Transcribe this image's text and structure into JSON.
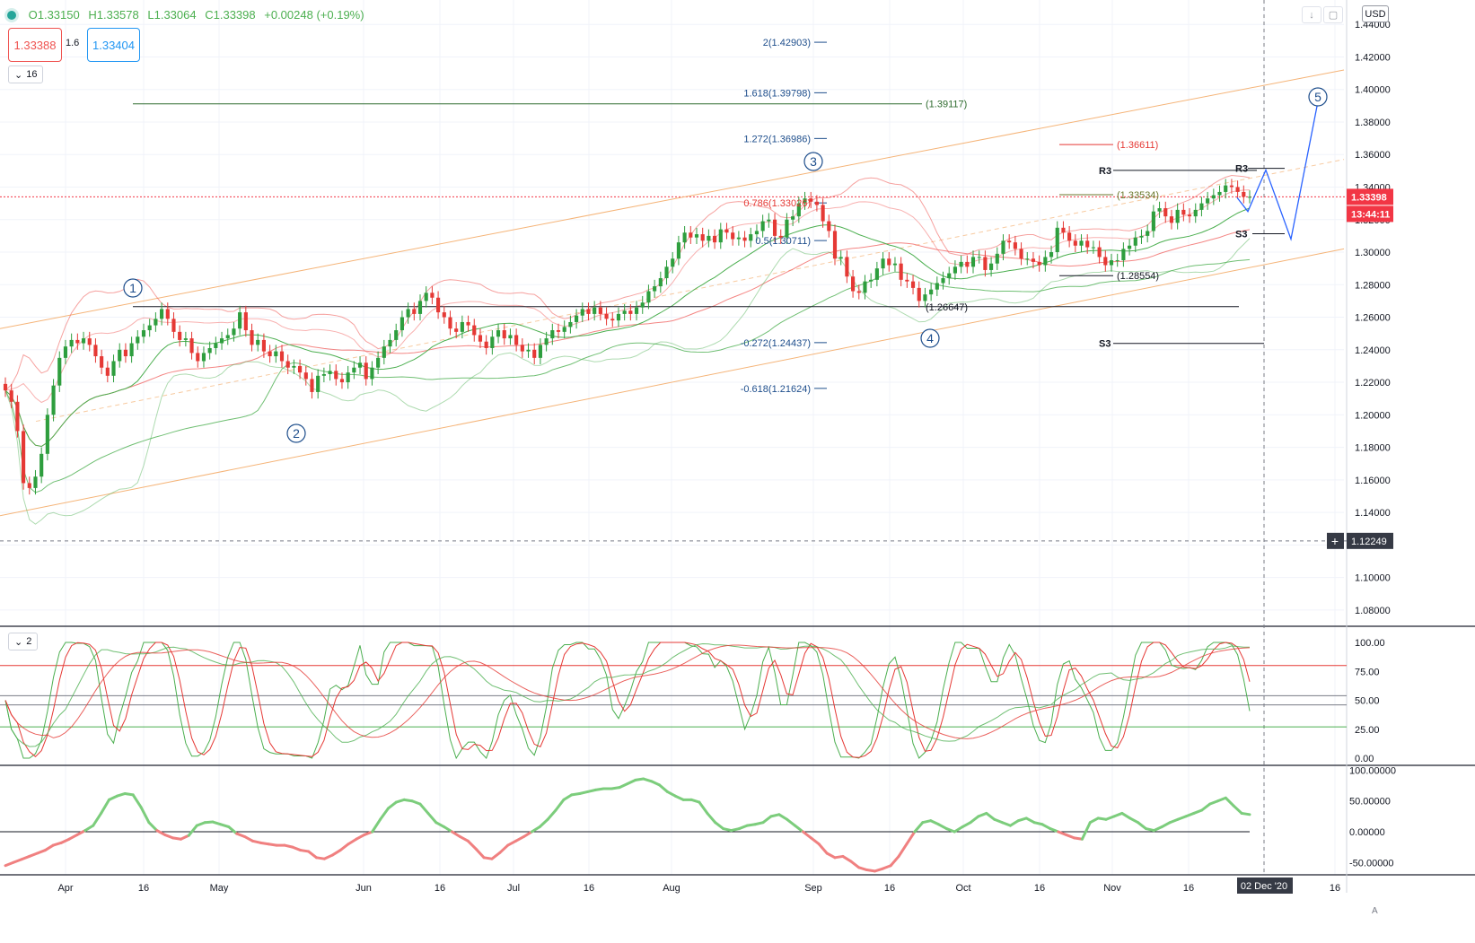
{
  "header": {
    "open": "O1.33150",
    "high": "H1.33578",
    "low": "L1.33064",
    "close": "C1.33398",
    "change": "+0.00248 (+0.19%)",
    "sell_price": "1.33388",
    "buy_price": "1.33404",
    "spread": "1.6",
    "indicators_collapse": "16",
    "stoch_collapse": "2",
    "currency": "USD"
  },
  "colors": {
    "up": "#2e9e3e",
    "down": "#e53935",
    "fib": "#1e4e8c",
    "channel": "#f5b478",
    "bb_red": "#ef5350",
    "bb_green": "#4caf50",
    "accent_red": "#f23645"
  },
  "chart_data": [
    {
      "type": "candlestick",
      "title": "",
      "x_ticks": [
        "Apr",
        "16",
        "May",
        "Jun",
        "16",
        "Jul",
        "16",
        "Aug",
        "Sep",
        "16",
        "Oct",
        "16",
        "Nov",
        "16",
        "02 Dec '20",
        "16"
      ],
      "y_ticks": [
        "1.08000",
        "1.10000",
        "1.12000",
        "1.14000",
        "1.16000",
        "1.18000",
        "1.20000",
        "1.22000",
        "1.24000",
        "1.26000",
        "1.28000",
        "1.30000",
        "1.32000",
        "1.34000",
        "1.36000",
        "1.38000",
        "1.40000",
        "1.42000",
        "1.44000"
      ],
      "ylim": [
        1.07,
        1.455
      ],
      "current_price": "1.33398",
      "countdown": "13:44:11",
      "crosshair_price": "1.12249",
      "close_series": [
        1.215,
        1.208,
        1.19,
        1.158,
        1.155,
        1.162,
        1.176,
        1.2,
        1.218,
        1.235,
        1.242,
        1.246,
        1.244,
        1.247,
        1.243,
        1.236,
        1.229,
        1.224,
        1.233,
        1.24,
        1.236,
        1.244,
        1.248,
        1.252,
        1.255,
        1.259,
        1.265,
        1.259,
        1.251,
        1.246,
        1.247,
        1.238,
        1.233,
        1.238,
        1.241,
        1.244,
        1.247,
        1.249,
        1.253,
        1.263,
        1.252,
        1.243,
        1.246,
        1.239,
        1.236,
        1.239,
        1.233,
        1.229,
        1.23,
        1.226,
        1.222,
        1.214,
        1.224,
        1.225,
        1.227,
        1.222,
        1.22,
        1.226,
        1.229,
        1.232,
        1.222,
        1.229,
        1.235,
        1.242,
        1.246,
        1.252,
        1.26,
        1.265,
        1.262,
        1.27,
        1.275,
        1.272,
        1.263,
        1.26,
        1.253,
        1.251,
        1.257,
        1.255,
        1.249,
        1.245,
        1.241,
        1.248,
        1.252,
        1.247,
        1.249,
        1.243,
        1.239,
        1.24,
        1.235,
        1.243,
        1.247,
        1.252,
        1.251,
        1.254,
        1.257,
        1.261,
        1.265,
        1.262,
        1.266,
        1.262,
        1.259,
        1.258,
        1.262,
        1.264,
        1.262,
        1.266,
        1.269,
        1.276,
        1.279,
        1.284,
        1.291,
        1.296,
        1.306,
        1.312,
        1.309,
        1.311,
        1.307,
        1.31,
        1.306,
        1.314,
        1.312,
        1.308,
        1.309,
        1.307,
        1.311,
        1.313,
        1.319,
        1.32,
        1.31,
        1.309,
        1.32,
        1.322,
        1.33,
        1.333,
        1.331,
        1.329,
        1.319,
        1.313,
        1.296,
        1.297,
        1.285,
        1.276,
        1.275,
        1.282,
        1.283,
        1.29,
        1.296,
        1.292,
        1.293,
        1.283,
        1.282,
        1.278,
        1.27,
        1.274,
        1.277,
        1.281,
        1.284,
        1.287,
        1.291,
        1.294,
        1.291,
        1.297,
        1.297,
        1.289,
        1.293,
        1.299,
        1.307,
        1.306,
        1.302,
        1.296,
        1.296,
        1.294,
        1.292,
        1.297,
        1.3,
        1.315,
        1.312,
        1.307,
        1.304,
        1.307,
        1.303,
        1.303,
        1.297,
        1.292,
        1.295,
        1.295,
        1.302,
        1.304,
        1.309,
        1.31,
        1.313,
        1.325,
        1.327,
        1.322,
        1.318,
        1.326,
        1.323,
        1.322,
        1.326,
        1.33,
        1.333,
        1.335,
        1.337,
        1.341,
        1.34,
        1.337,
        1.334,
        1.334
      ],
      "fib_levels": [
        {
          "label": "2(1.42903)",
          "value": 1.42903
        },
        {
          "label": "1.618(1.39798)",
          "value": 1.39798
        },
        {
          "label": "1.272(1.36986)",
          "value": 1.36986
        },
        {
          "label": "0.786(1.33026)",
          "value": 1.33026
        },
        {
          "label": "0.5(1.30711)",
          "value": 1.30711
        },
        {
          "label": "-0.272(1.24437)",
          "value": 1.24437
        },
        {
          "label": "-0.618(1.21624)",
          "value": 1.21624
        }
      ],
      "annotations": [
        {
          "label": "(1.39117)",
          "value": 1.39117
        },
        {
          "label": "(1.36611)",
          "value": 1.36611
        },
        {
          "label": "(1.33534)",
          "value": 1.33534
        },
        {
          "label": "(1.28554)",
          "value": 1.28554
        },
        {
          "label": "(1.26647)",
          "value": 1.26647
        },
        {
          "label": "R3",
          "value": 1.3503
        },
        {
          "label": "R3",
          "value": 1.3515
        },
        {
          "label": "S3",
          "value": 1.3113
        },
        {
          "label": "S3",
          "value": 1.2439
        }
      ],
      "wave_labels": [
        "1",
        "2",
        "3",
        "4",
        "5"
      ]
    },
    {
      "type": "line",
      "title": "",
      "y_ticks": [
        "0.00",
        "25.00",
        "50.00",
        "75.00",
        "100.00"
      ],
      "ylim": [
        0,
        100
      ],
      "levels": [
        80,
        54,
        46,
        27
      ]
    },
    {
      "type": "line",
      "title": "",
      "y_ticks": [
        "-50.00000",
        "0.00000",
        "50.00000",
        "100.00000"
      ],
      "ylim": [
        -70,
        105
      ],
      "values": [
        -55,
        -50,
        -45,
        -40,
        -35,
        -30,
        -22,
        -18,
        -12,
        -5,
        2,
        10,
        30,
        52,
        58,
        62,
        60,
        40,
        15,
        2,
        -5,
        -10,
        -12,
        -6,
        10,
        15,
        16,
        12,
        8,
        -3,
        -8,
        -15,
        -18,
        -20,
        -22,
        -22,
        -25,
        -30,
        -32,
        -42,
        -44,
        -38,
        -30,
        -20,
        -12,
        -5,
        0,
        20,
        38,
        48,
        52,
        50,
        45,
        30,
        15,
        8,
        0,
        -8,
        -15,
        -28,
        -42,
        -44,
        -34,
        -22,
        -15,
        -8,
        0,
        8,
        20,
        35,
        52,
        60,
        62,
        65,
        68,
        70,
        70,
        72,
        78,
        84,
        86,
        82,
        76,
        65,
        58,
        52,
        52,
        48,
        30,
        15,
        5,
        2,
        5,
        10,
        12,
        15,
        25,
        28,
        20,
        10,
        0,
        -10,
        -20,
        -35,
        -42,
        -40,
        -48,
        -58,
        -62,
        -64,
        -60,
        -55,
        -40,
        -20,
        0,
        15,
        18,
        12,
        5,
        0,
        8,
        15,
        25,
        30,
        20,
        15,
        10,
        18,
        22,
        15,
        12,
        5,
        0,
        -5,
        -10,
        -12,
        15,
        22,
        20,
        25,
        30,
        22,
        15,
        5,
        2,
        8,
        15,
        20,
        25,
        30,
        35,
        45,
        50,
        55,
        42,
        30,
        28
      ]
    }
  ]
}
